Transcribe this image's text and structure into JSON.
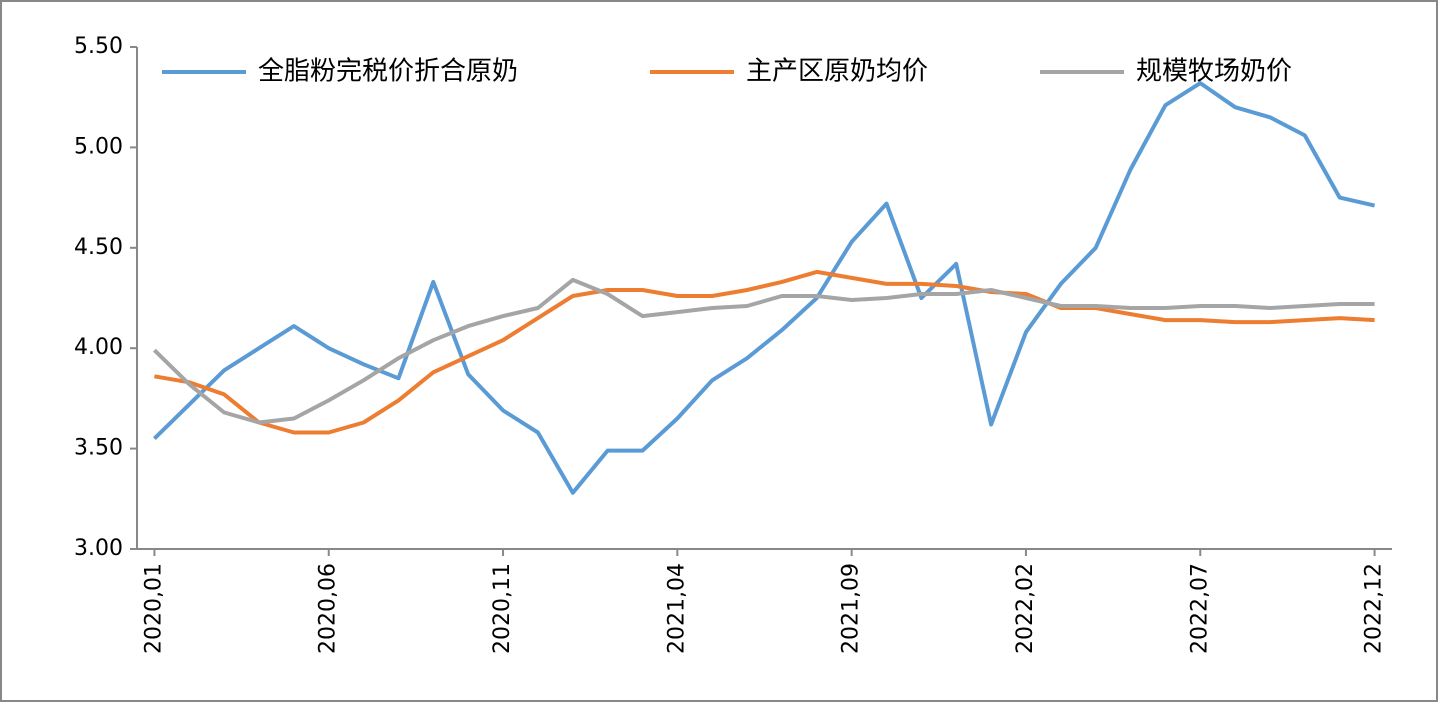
{
  "chart_data": {
    "type": "line",
    "categories": [
      "2020,01",
      null,
      null,
      null,
      null,
      "2020,06",
      null,
      null,
      null,
      null,
      "2020,11",
      null,
      null,
      null,
      null,
      "2021,04",
      null,
      null,
      null,
      null,
      "2021,09",
      null,
      null,
      null,
      null,
      "2022,02",
      null,
      null,
      null,
      null,
      "2022,07",
      null,
      null,
      null,
      null,
      "2022,12"
    ],
    "series": [
      {
        "name": "全脂粉完税价折合原奶",
        "color": "#5b9bd5",
        "values": [
          3.55,
          3.72,
          3.89,
          4.0,
          4.11,
          4.0,
          3.92,
          3.85,
          4.33,
          3.87,
          3.69,
          3.58,
          3.28,
          3.49,
          3.49,
          3.65,
          3.84,
          3.95,
          4.09,
          4.25,
          4.53,
          4.72,
          4.25,
          4.42,
          3.62,
          4.08,
          4.32,
          4.5,
          4.89,
          5.21,
          5.32,
          5.2,
          5.15,
          5.06,
          4.75,
          4.71
        ]
      },
      {
        "name": "主产区原奶均价",
        "color": "#ed7d31",
        "values": [
          3.86,
          3.83,
          3.77,
          3.63,
          3.58,
          3.58,
          3.63,
          3.74,
          3.88,
          3.96,
          4.04,
          4.15,
          4.26,
          4.29,
          4.29,
          4.26,
          4.26,
          4.29,
          4.33,
          4.38,
          4.35,
          4.32,
          4.32,
          4.31,
          4.28,
          4.27,
          4.2,
          4.2,
          4.17,
          4.14,
          4.14,
          4.13,
          4.13,
          4.14,
          4.15,
          4.14
        ]
      },
      {
        "name": "规模牧场奶价",
        "color": "#a5a5a5",
        "values": [
          3.99,
          3.82,
          3.68,
          3.63,
          3.65,
          3.74,
          3.84,
          3.95,
          4.04,
          4.11,
          4.16,
          4.2,
          4.34,
          4.27,
          4.16,
          4.18,
          4.2,
          4.21,
          4.26,
          4.26,
          4.24,
          4.25,
          4.27,
          4.27,
          4.29,
          4.25,
          4.21,
          4.21,
          4.2,
          4.2,
          4.21,
          4.21,
          4.2,
          4.21,
          4.22,
          4.22
        ]
      }
    ],
    "ylim": [
      3,
      5.5
    ],
    "yticks": [
      {
        "value": 3,
        "label": "3.00"
      },
      {
        "value": 3.5,
        "label": "3.50"
      },
      {
        "value": 4,
        "label": "4.00"
      },
      {
        "value": 4.5,
        "label": "4.50"
      },
      {
        "value": 5,
        "label": "5.00"
      },
      {
        "value": 5.5,
        "label": "5.50"
      }
    ],
    "grid": false,
    "legend": "top"
  }
}
